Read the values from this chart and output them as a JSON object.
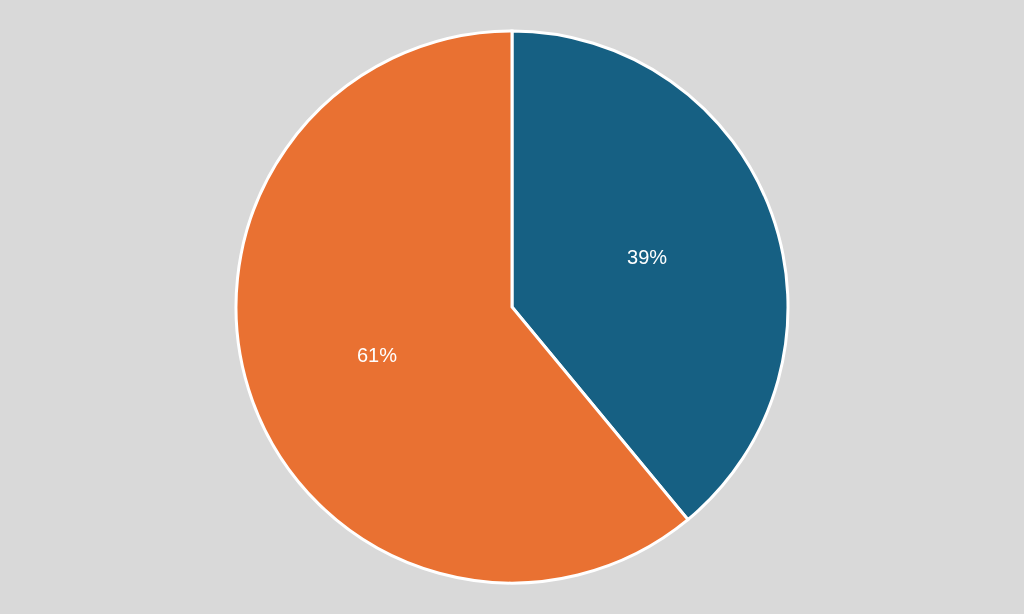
{
  "chart_data": {
    "type": "pie",
    "categories": [
      null,
      null
    ],
    "values": [
      39,
      61
    ],
    "colors": [
      "#166083",
      "#e97132"
    ],
    "value_labels": [
      "39%",
      "61%"
    ]
  }
}
